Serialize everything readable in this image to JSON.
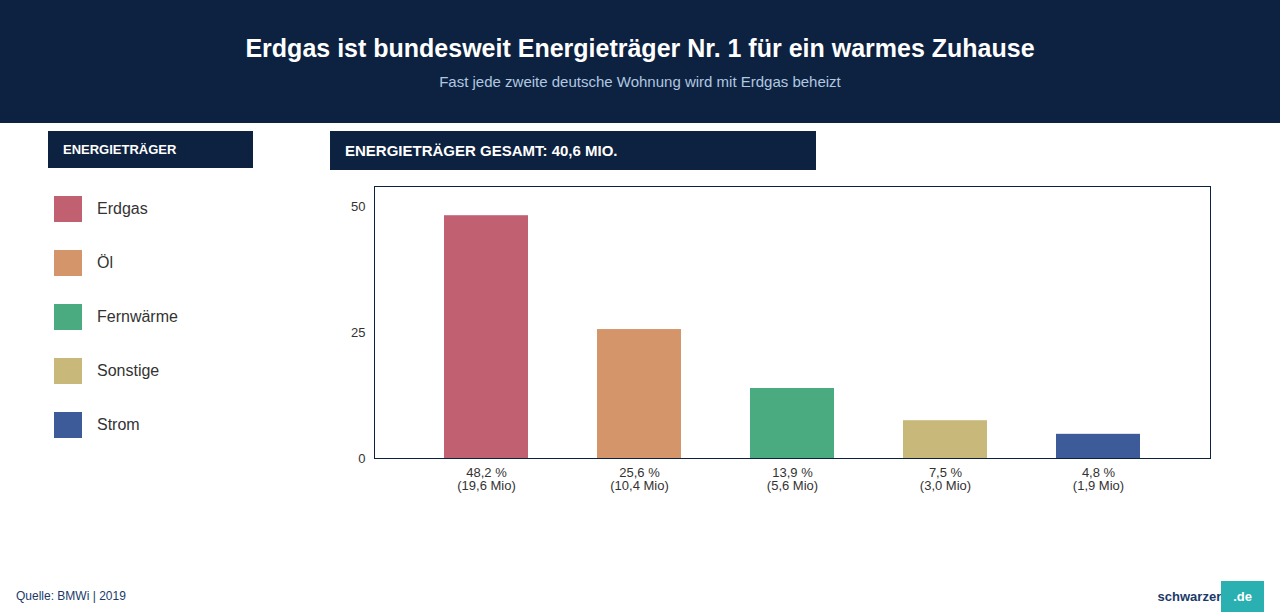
{
  "chart_data": {
    "type": "bar",
    "title": "Erdgas ist bundesweit Energieträger Nr. 1 für ein warmes Zuhause",
    "subtitle": "Fast jede zweite deutsche Wohnung wird mit Erdgas beheizt",
    "chart_title": "ENERGIETRÄGER GESAMT: 40,6 MIO.",
    "legend_title": "ENERGIETRÄGER",
    "categories": [
      "Erdgas",
      "Öl",
      "Fernwärme",
      "Sonstige",
      "Strom"
    ],
    "values": [
      48.2,
      25.6,
      13.9,
      7.5,
      4.8
    ],
    "value_labels": [
      "48,2 %\n(19,6 Mio)",
      "25,6 %\n(10,4 Mio)",
      "13,9 %\n(5,6 Mio)",
      "7,5 %\n(3,0 Mio)",
      "4,8 %\n(1,9 Mio)"
    ],
    "colors": [
      "#c06070",
      "#d4956a",
      "#4aaa80",
      "#c8b87a",
      "#3d5a99"
    ],
    "ylim": [
      0,
      54
    ],
    "yticks": [
      0,
      25,
      50
    ],
    "grid": false,
    "legend": "left",
    "data_labels": true,
    "source": "Quelle: BMWi | 2019",
    "watermark": [
      "schwarzer",
      ".de"
    ]
  }
}
